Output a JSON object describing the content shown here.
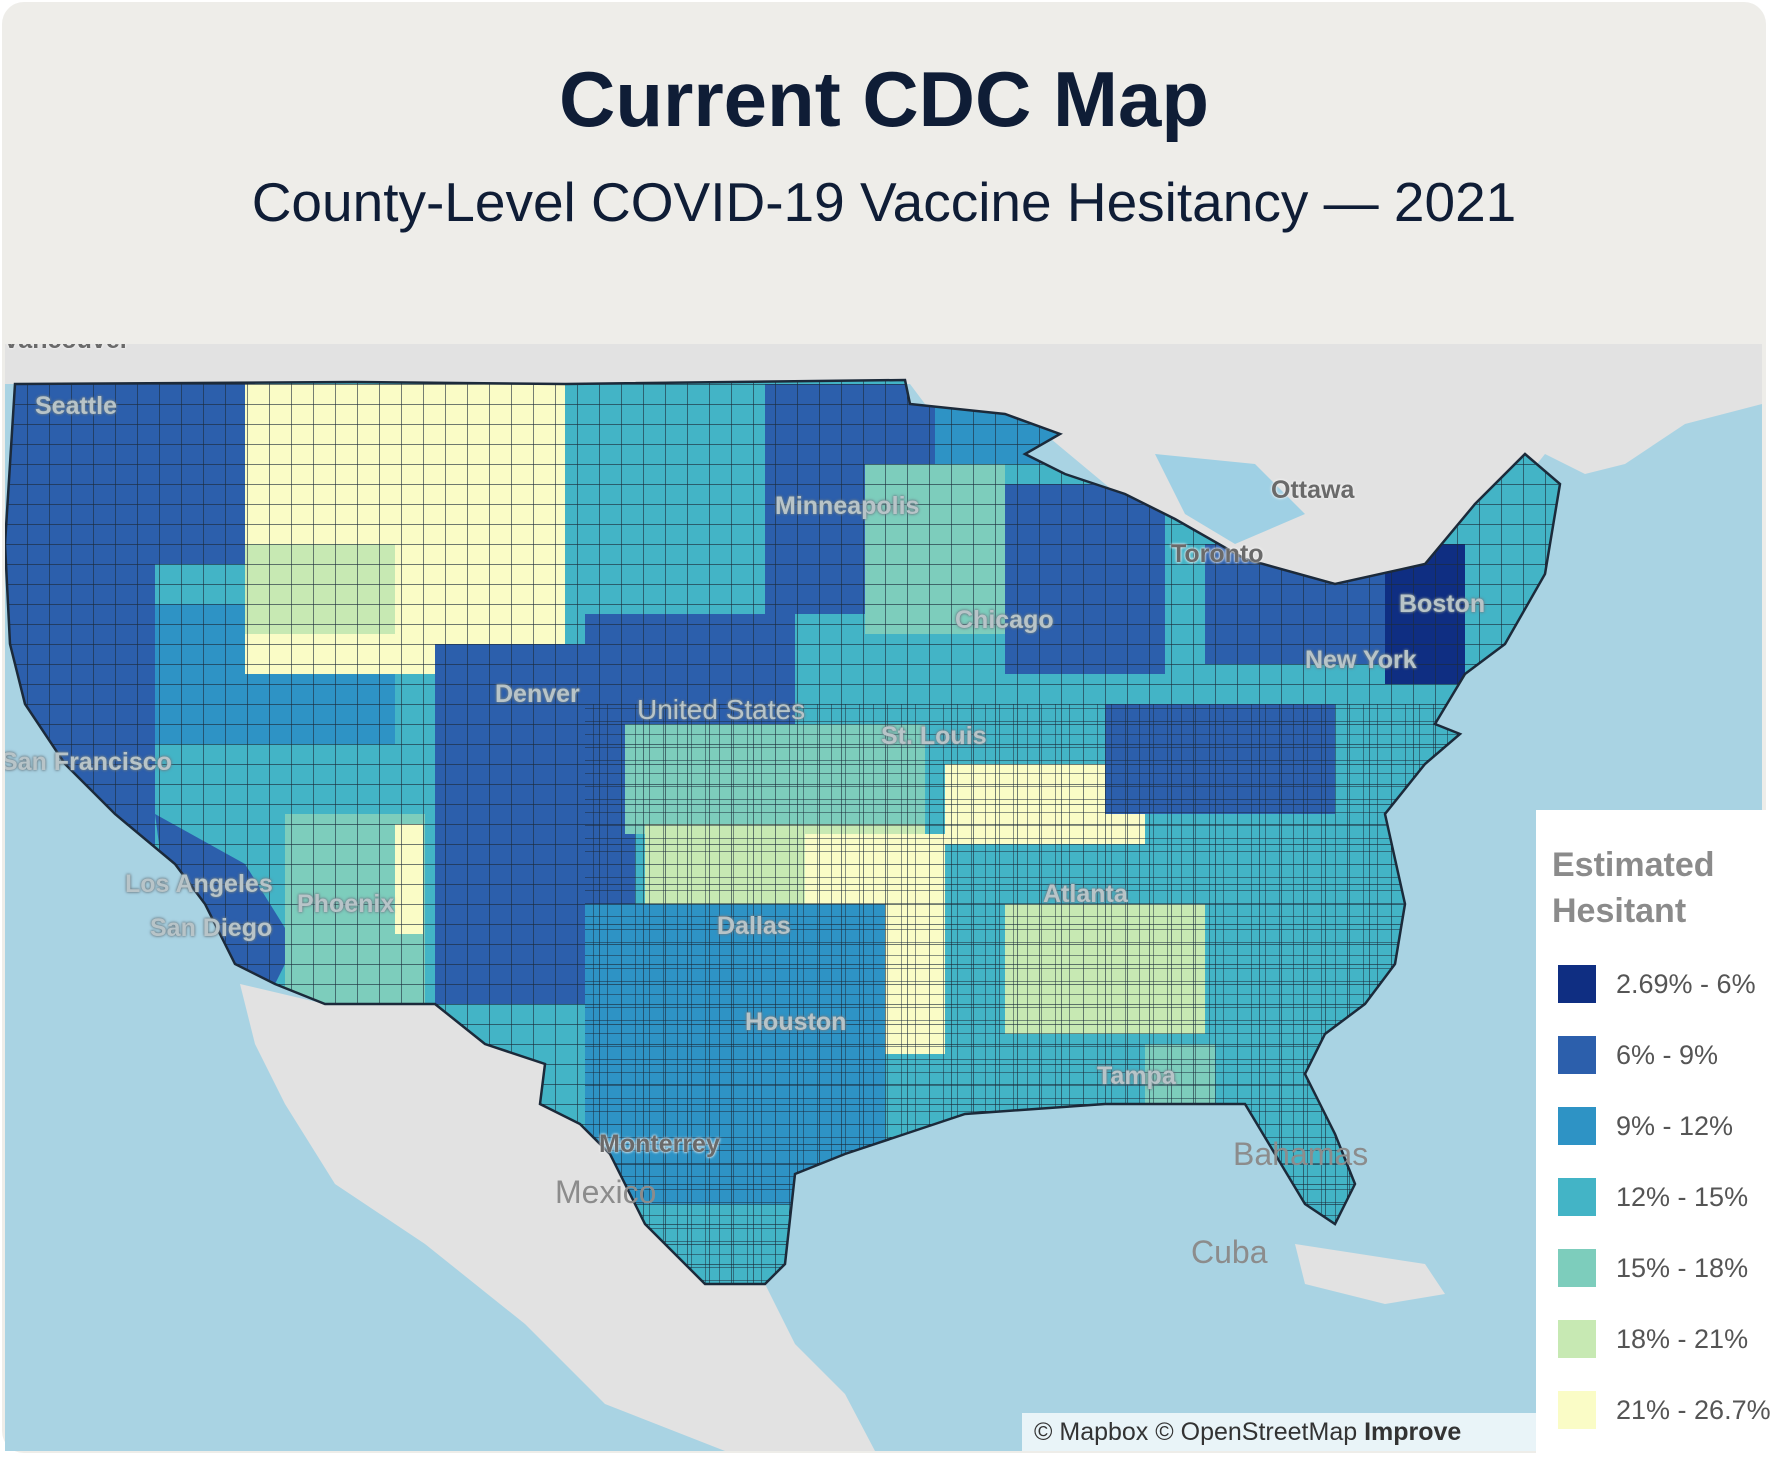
{
  "header": {
    "title": "Current CDC Map",
    "subtitle": "County-Level COVID-19 Vaccine Hesitancy — 2021"
  },
  "map": {
    "country_label": "United States",
    "cities": [
      "Vancouver",
      "Seattle",
      "San Francisco",
      "Los Angeles",
      "San Diego",
      "Phoenix",
      "Denver",
      "Minneapolis",
      "Chicago",
      "St. Louis",
      "Dallas",
      "Houston",
      "Atlanta",
      "Tampa",
      "Ottawa",
      "Toronto",
      "Boston",
      "New York",
      "Monterrey"
    ],
    "countries": [
      "Mexico",
      "Bahamas",
      "Cuba"
    ],
    "attribution": {
      "mapbox": "© Mapbox",
      "osm": "© OpenStreetMap",
      "improve": "Improve"
    }
  },
  "legend": {
    "title": "Estimated Hesitant",
    "items": [
      {
        "label": "2.69% - 6%",
        "color": "#0f2e82"
      },
      {
        "label": "6% - 9%",
        "color": "#2c5fac"
      },
      {
        "label": "9% - 12%",
        "color": "#2e93c5"
      },
      {
        "label": "12% - 15%",
        "color": "#43b4c6"
      },
      {
        "label": "15% - 18%",
        "color": "#7dcdbc"
      },
      {
        "label": "18% - 21%",
        "color": "#c7e9b3"
      },
      {
        "label": "21% - 26.7%",
        "color": "#fafcc6"
      }
    ]
  },
  "colors": {
    "land": "#e2e2e2",
    "water": "#a9d3e3",
    "border": "#1c2a3a"
  }
}
